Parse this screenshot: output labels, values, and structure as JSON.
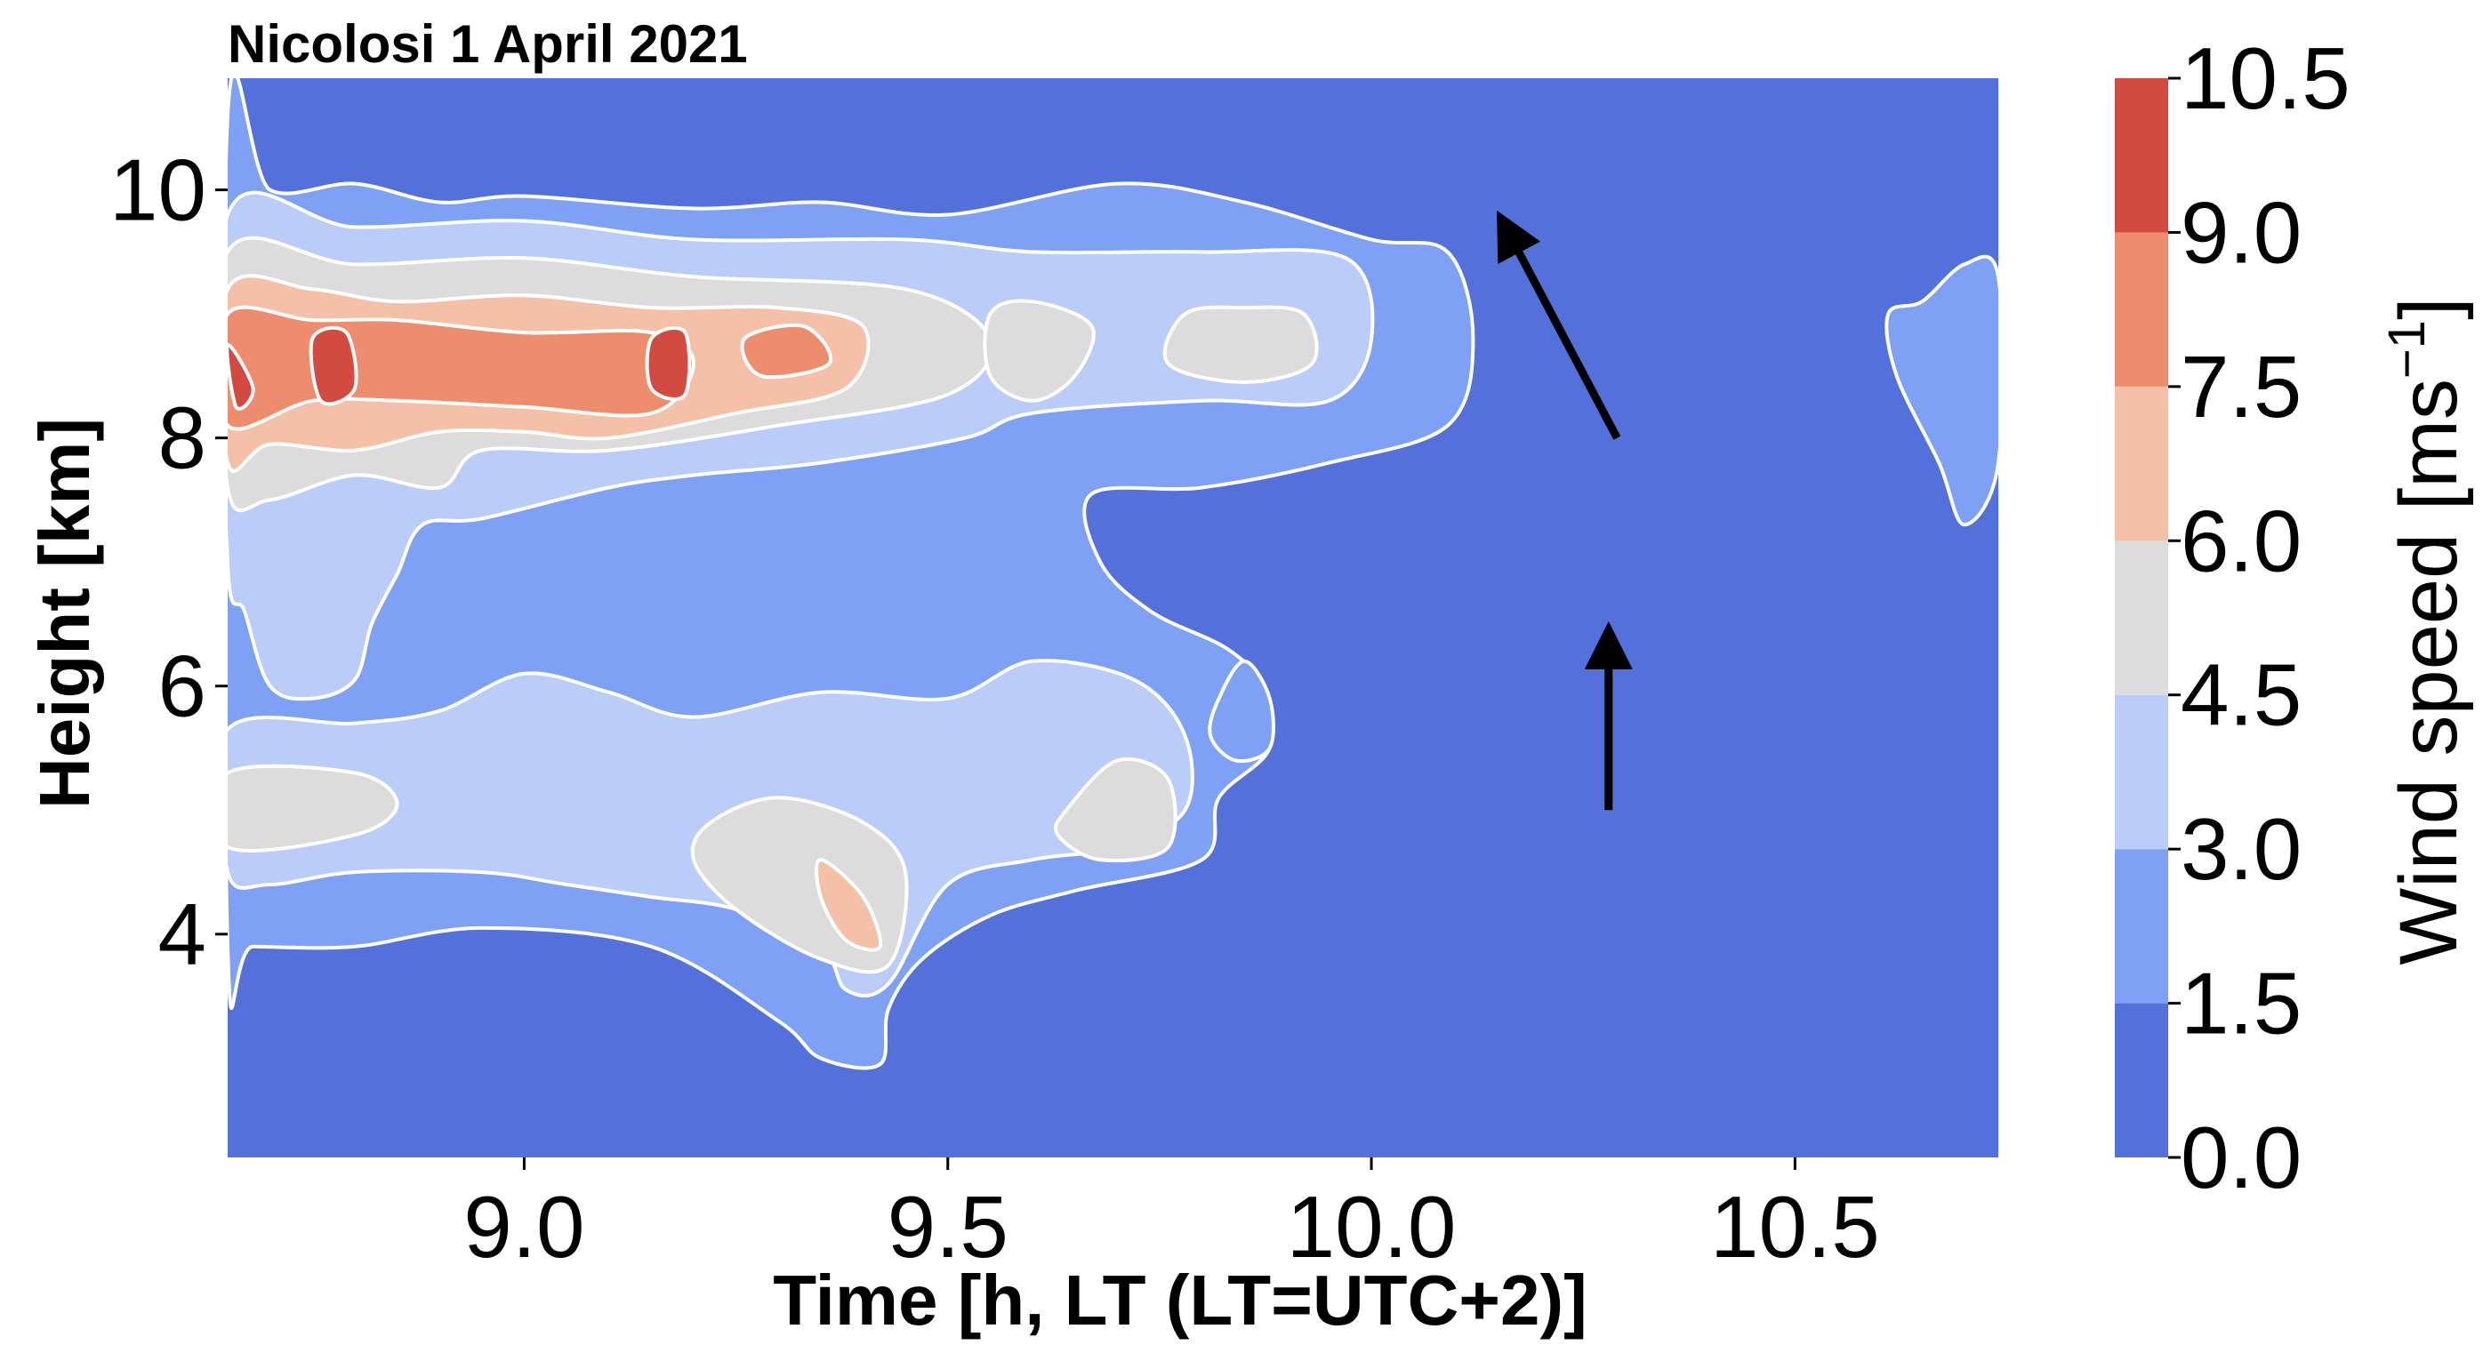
{
  "chart_data": {
    "type": "heatmap",
    "subtype": "filled-contour",
    "title": "Nicolosi  1 April 2021",
    "xlabel": "Time [h, LT (LT=UTC+2)]",
    "ylabel": "Height [km]",
    "xlim": [
      8.65,
      10.74
    ],
    "ylim": [
      2.2,
      10.9
    ],
    "xticks": [
      9.0,
      9.5,
      10.0,
      10.5
    ],
    "xtick_labels": [
      "9.0",
      "9.5",
      "10.0",
      "10.5"
    ],
    "yticks": [
      4,
      6,
      8,
      10
    ],
    "ytick_labels": [
      "4",
      "6",
      "8",
      "10"
    ],
    "grid": false,
    "colorbar": {
      "label": "Wind speed [ms⁻¹]",
      "label_text": "Wind speed [ms",
      "label_sup": "−1",
      "label_close": "]",
      "levels": [
        0.0,
        1.5,
        3.0,
        4.5,
        6.0,
        7.5,
        9.0,
        10.5
      ],
      "level_labels": [
        "0.0",
        "1.5",
        "3.0",
        "4.5",
        "6.0",
        "7.5",
        "9.0",
        "10.5"
      ],
      "colors": [
        "#5470db",
        "#7fa1f5",
        "#b9cdf8",
        "#dcdcdc",
        "#f4c1a8",
        "#ee8c6e",
        "#d24a40"
      ]
    },
    "background_color": "#5470db",
    "contour_line_color": "#ffffff",
    "bands": [
      {
        "level_index": 1,
        "points": [
          [
            8.65,
            10.6
          ],
          [
            8.7,
            10.0
          ],
          [
            8.8,
            10.05
          ],
          [
            8.9,
            9.9
          ],
          [
            9.0,
            9.95
          ],
          [
            9.2,
            9.85
          ],
          [
            9.35,
            9.9
          ],
          [
            9.5,
            9.8
          ],
          [
            9.7,
            10.05
          ],
          [
            9.85,
            9.9
          ],
          [
            10.0,
            9.6
          ],
          [
            10.09,
            9.5
          ],
          [
            10.12,
            8.8
          ],
          [
            10.09,
            8.1
          ],
          [
            9.95,
            7.8
          ],
          [
            9.8,
            7.6
          ],
          [
            9.67,
            7.55
          ],
          [
            9.68,
            7.0
          ],
          [
            9.74,
            6.6
          ],
          [
            9.83,
            6.3
          ],
          [
            9.87,
            6.0
          ],
          [
            9.88,
            5.5
          ],
          [
            9.82,
            5.1
          ],
          [
            9.8,
            4.6
          ],
          [
            9.65,
            4.35
          ],
          [
            9.55,
            4.15
          ],
          [
            9.47,
            3.8
          ],
          [
            9.43,
            3.4
          ],
          [
            9.42,
            2.95
          ],
          [
            9.35,
            3.0
          ],
          [
            9.3,
            3.3
          ],
          [
            9.15,
            3.9
          ],
          [
            8.95,
            4.05
          ],
          [
            8.8,
            3.9
          ],
          [
            8.68,
            3.9
          ],
          [
            8.65,
            3.9
          ]
        ]
      },
      {
        "level_index": 1,
        "points": [
          [
            10.65,
            9.1
          ],
          [
            10.7,
            9.4
          ],
          [
            10.74,
            9.3
          ],
          [
            10.74,
            7.8
          ],
          [
            10.7,
            7.3
          ],
          [
            10.67,
            7.8
          ],
          [
            10.62,
            8.5
          ],
          [
            10.61,
            9.0
          ]
        ]
      },
      {
        "level_index": 1,
        "points": [
          [
            9.85,
            6.2
          ],
          [
            9.88,
            5.9
          ],
          [
            9.88,
            5.5
          ],
          [
            9.84,
            5.4
          ],
          [
            9.81,
            5.6
          ],
          [
            9.82,
            5.9
          ]
        ]
      },
      {
        "level_index": 2,
        "points": [
          [
            8.65,
            9.8
          ],
          [
            8.8,
            9.7
          ],
          [
            9.0,
            9.75
          ],
          [
            9.2,
            9.6
          ],
          [
            9.45,
            9.6
          ],
          [
            9.6,
            9.5
          ],
          [
            9.8,
            9.5
          ],
          [
            9.97,
            9.45
          ],
          [
            10.0,
            8.8
          ],
          [
            9.95,
            8.3
          ],
          [
            9.8,
            8.3
          ],
          [
            9.6,
            8.2
          ],
          [
            9.52,
            8.0
          ],
          [
            9.35,
            7.8
          ],
          [
            9.2,
            7.7
          ],
          [
            9.1,
            7.6
          ],
          [
            8.95,
            7.35
          ],
          [
            8.88,
            7.3
          ],
          [
            8.85,
            6.9
          ],
          [
            8.82,
            6.5
          ],
          [
            8.8,
            6.05
          ],
          [
            8.75,
            5.9
          ],
          [
            8.7,
            6.0
          ],
          [
            8.67,
            6.6
          ],
          [
            8.65,
            7.0
          ]
        ]
      },
      {
        "level_index": 2,
        "points": [
          [
            8.65,
            5.65
          ],
          [
            8.8,
            5.7
          ],
          [
            8.9,
            5.8
          ],
          [
            9.0,
            6.1
          ],
          [
            9.1,
            5.95
          ],
          [
            9.2,
            5.75
          ],
          [
            9.35,
            5.95
          ],
          [
            9.5,
            5.9
          ],
          [
            9.6,
            6.2
          ],
          [
            9.72,
            6.05
          ],
          [
            9.78,
            5.6
          ],
          [
            9.78,
            5.0
          ],
          [
            9.7,
            4.7
          ],
          [
            9.6,
            4.6
          ],
          [
            9.5,
            4.4
          ],
          [
            9.43,
            3.6
          ],
          [
            9.38,
            3.55
          ],
          [
            9.35,
            3.9
          ],
          [
            9.25,
            4.2
          ],
          [
            9.15,
            4.3
          ],
          [
            9.05,
            4.4
          ],
          [
            8.95,
            4.5
          ],
          [
            8.8,
            4.5
          ],
          [
            8.7,
            4.4
          ],
          [
            8.65,
            4.5
          ]
        ]
      },
      {
        "level_index": 3,
        "points": [
          [
            8.65,
            9.5
          ],
          [
            8.8,
            9.4
          ],
          [
            9.0,
            9.45
          ],
          [
            9.2,
            9.3
          ],
          [
            9.45,
            9.2
          ],
          [
            9.55,
            8.8
          ],
          [
            9.5,
            8.35
          ],
          [
            9.3,
            8.1
          ],
          [
            9.1,
            7.9
          ],
          [
            8.95,
            7.9
          ],
          [
            8.9,
            7.6
          ],
          [
            8.8,
            7.7
          ],
          [
            8.7,
            7.5
          ],
          [
            8.65,
            7.6
          ]
        ]
      },
      {
        "level_index": 3,
        "points": [
          [
            9.55,
            9.0
          ],
          [
            9.6,
            9.1
          ],
          [
            9.67,
            8.9
          ],
          [
            9.65,
            8.5
          ],
          [
            9.6,
            8.3
          ],
          [
            9.55,
            8.5
          ]
        ]
      },
      {
        "level_index": 3,
        "points": [
          [
            9.78,
            9.0
          ],
          [
            9.85,
            9.05
          ],
          [
            9.92,
            9.0
          ],
          [
            9.93,
            8.6
          ],
          [
            9.85,
            8.45
          ],
          [
            9.76,
            8.6
          ]
        ]
      },
      {
        "level_index": 3,
        "points": [
          [
            8.65,
            5.3
          ],
          [
            8.8,
            5.3
          ],
          [
            8.85,
            5.05
          ],
          [
            8.8,
            4.8
          ],
          [
            8.65,
            4.7
          ]
        ]
      },
      {
        "level_index": 3,
        "points": [
          [
            9.22,
            4.9
          ],
          [
            9.3,
            5.1
          ],
          [
            9.4,
            4.9
          ],
          [
            9.45,
            4.5
          ],
          [
            9.43,
            3.75
          ],
          [
            9.35,
            3.8
          ],
          [
            9.25,
            4.2
          ],
          [
            9.2,
            4.6
          ]
        ]
      },
      {
        "level_index": 3,
        "points": [
          [
            9.64,
            5.0
          ],
          [
            9.7,
            5.4
          ],
          [
            9.76,
            5.25
          ],
          [
            9.76,
            4.7
          ],
          [
            9.68,
            4.6
          ],
          [
            9.63,
            4.8
          ]
        ]
      },
      {
        "level_index": 4,
        "points": [
          [
            8.65,
            9.2
          ],
          [
            8.75,
            9.2
          ],
          [
            8.85,
            9.1
          ],
          [
            9.0,
            9.15
          ],
          [
            9.15,
            9.05
          ],
          [
            9.3,
            9.05
          ],
          [
            9.4,
            8.9
          ],
          [
            9.38,
            8.4
          ],
          [
            9.25,
            8.2
          ],
          [
            9.1,
            8.0
          ],
          [
            9.0,
            8.05
          ],
          [
            8.9,
            8.05
          ],
          [
            8.8,
            7.9
          ],
          [
            8.7,
            7.95
          ],
          [
            8.65,
            7.8
          ]
        ]
      },
      {
        "level_index": 4,
        "points": [
          [
            9.35,
            4.6
          ],
          [
            9.4,
            4.3
          ],
          [
            9.42,
            3.9
          ],
          [
            9.38,
            3.95
          ],
          [
            9.35,
            4.3
          ]
        ]
      },
      {
        "level_index": 5,
        "points": [
          [
            8.65,
            9.0
          ],
          [
            8.75,
            8.95
          ],
          [
            8.85,
            8.95
          ],
          [
            9.0,
            8.85
          ],
          [
            9.15,
            8.85
          ],
          [
            9.2,
            8.6
          ],
          [
            9.15,
            8.2
          ],
          [
            9.0,
            8.25
          ],
          [
            8.85,
            8.3
          ],
          [
            8.75,
            8.3
          ],
          [
            8.65,
            8.1
          ]
        ]
      },
      {
        "level_index": 5,
        "points": [
          [
            9.26,
            8.8
          ],
          [
            9.33,
            8.9
          ],
          [
            9.36,
            8.6
          ],
          [
            9.28,
            8.5
          ]
        ]
      },
      {
        "level_index": 6,
        "points": [
          [
            8.65,
            8.75
          ],
          [
            8.68,
            8.4
          ],
          [
            8.66,
            8.25
          ]
        ]
      },
      {
        "level_index": 6,
        "points": [
          [
            8.75,
            8.8
          ],
          [
            8.79,
            8.85
          ],
          [
            8.8,
            8.4
          ],
          [
            8.76,
            8.3
          ]
        ]
      },
      {
        "level_index": 6,
        "points": [
          [
            9.15,
            8.8
          ],
          [
            9.19,
            8.85
          ],
          [
            9.19,
            8.35
          ],
          [
            9.15,
            8.4
          ]
        ]
      }
    ],
    "annotations": [
      {
        "type": "arrow",
        "from": [
          10.29,
          8.0
        ],
        "to": [
          10.17,
          9.55
        ],
        "color": "#000000"
      },
      {
        "type": "arrow",
        "from": [
          10.28,
          5.0
        ],
        "to": [
          10.28,
          6.2
        ],
        "color": "#000000"
      }
    ]
  }
}
